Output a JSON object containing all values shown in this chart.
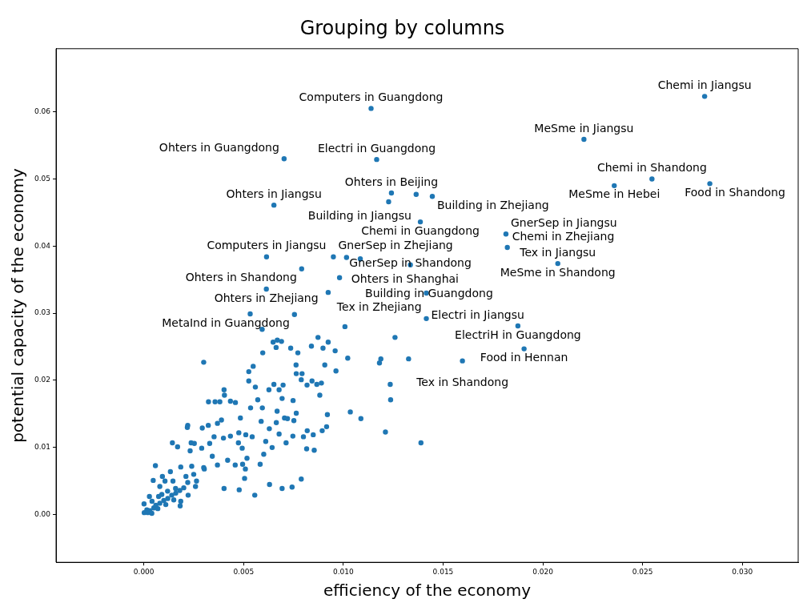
{
  "chart_data": {
    "type": "scatter",
    "title": "Grouping by columns",
    "xlabel": "efficiency of the economy",
    "ylabel": "potential capacity of the economy",
    "xlim": [
      -0.0044,
      0.0328
    ],
    "ylim": [
      -0.0071,
      0.0694
    ],
    "xticks": [
      {
        "value": 0,
        "label": "0.000"
      },
      {
        "value": 0.005,
        "label": "0.005"
      },
      {
        "value": 0.01,
        "label": "0.010"
      },
      {
        "value": 0.015,
        "label": "0.015"
      },
      {
        "value": 0.02,
        "label": "0.020"
      },
      {
        "value": 0.025,
        "label": "0.025"
      },
      {
        "value": 0.03,
        "label": "0.030"
      }
    ],
    "yticks": [
      {
        "value": 0,
        "label": "0.00"
      },
      {
        "value": 0.01,
        "label": "0.01"
      },
      {
        "value": 0.02,
        "label": "0.02"
      },
      {
        "value": 0.03,
        "label": "0.03"
      },
      {
        "value": 0.04,
        "label": "0.04"
      },
      {
        "value": 0.05,
        "label": "0.05"
      },
      {
        "value": 0.06,
        "label": "0.06"
      }
    ],
    "grid": false,
    "legend": false,
    "marker": "circle",
    "series": [
      {
        "color": "#1f77b4",
        "x": [
          0.01139,
          0.01167,
          0.00703,
          0.01241,
          0.01365,
          0.01446,
          0.00652,
          0.01386,
          0.01815,
          0.01822,
          0.02075,
          0.00615,
          0.0095,
          0.00791,
          0.01336,
          0.01416,
          0.01416,
          0.01875,
          0.00755,
          0.01906,
          0.01597,
          0.02811,
          0.02206,
          0.02547,
          0.02358,
          0.02837,
          0.00614,
          0.01085,
          0.00533,
          0.00924,
          0.00981,
          0.01227,
          0.01016,
          0.00593,
          0.01008,
          0.01259,
          0.00873,
          0.00669,
          0.00648,
          0.0069,
          0.00924,
          0.0084,
          0.00663,
          0.00736,
          0.00898,
          0.00772,
          0.00596,
          0.00959,
          0.01022,
          0.01188,
          0.01181,
          0.01327,
          0.003,
          0.00548,
          0.00763,
          0.00907,
          0.00526,
          0.00963,
          0.00764,
          0.00793,
          0.00789,
          0.00843,
          0.0089,
          0.00867,
          0.00818,
          0.00526,
          0.00559,
          0.00652,
          0.00698,
          0.00627,
          0.00678,
          0.01235,
          0.00402,
          0.00404,
          0.00571,
          0.00693,
          0.00748,
          0.00882,
          0.01237,
          0.00324,
          0.00357,
          0.00381,
          0.00434,
          0.00459,
          0.00535,
          0.00594,
          0.00668,
          0.00764,
          0.01035,
          0.01088,
          0.0092,
          0.00705,
          0.0072,
          0.00752,
          0.00484,
          0.00389,
          0.00369,
          0.00323,
          0.0022,
          0.00218,
          0.00293,
          0.00588,
          0.00629,
          0.00664,
          0.00476,
          0.00511,
          0.00543,
          0.00678,
          0.00747,
          0.008,
          0.00849,
          0.00894,
          0.00916,
          0.00819,
          0.01211,
          0.01389,
          0.00143,
          0.00169,
          0.00237,
          0.00253,
          0.0033,
          0.00399,
          0.00434,
          0.00352,
          0.00474,
          0.00493,
          0.00611,
          0.00643,
          0.00713,
          0.00816,
          0.00854,
          0.00517,
          0.00601,
          0.00583,
          0.00058,
          0.00232,
          0.0029,
          0.00343,
          0.0042,
          0.00458,
          0.00495,
          0.00369,
          0.0024,
          0.00185,
          0.00303,
          0.00509,
          0.00505,
          0.00789,
          0.0063,
          0.00693,
          0.00743,
          0.00402,
          0.00478,
          0.00556,
          0.00259,
          0.00264,
          0.00222,
          0.00182,
          0.00185,
          0.00146,
          0.00106,
          0.0008,
          0.00047,
          0.00028,
          1e-05,
          2e-05,
          0.00015,
          0.00041,
          0.00074,
          0.00119,
          0.00159,
          0.00211,
          0.00093,
          0.00133,
          0.0003,
          0.0005,
          0.0006,
          0.0008,
          0.001,
          0.0012,
          0.0014,
          0.0016,
          0.0018,
          0.002,
          0.0009,
          0.0011,
          0.0015,
          0.0007,
          0.0025,
          0.003,
          0.0022,
          0.0004,
          0.0002
        ],
        "values": [
          0.0605,
          0.0529,
          0.053,
          0.0479,
          0.0477,
          0.0474,
          0.0461,
          0.0436,
          0.0418,
          0.0398,
          0.0374,
          0.0384,
          0.0384,
          0.0366,
          0.0372,
          0.033,
          0.0292,
          0.0281,
          0.0298,
          0.0247,
          0.0229,
          0.0623,
          0.0559,
          0.05,
          0.049,
          0.0493,
          0.0336,
          0.0381,
          0.0299,
          0.0331,
          0.0353,
          0.0466,
          0.0383,
          0.0276,
          0.028,
          0.0264,
          0.0264,
          0.026,
          0.0257,
          0.0258,
          0.0257,
          0.0251,
          0.0249,
          0.0248,
          0.0248,
          0.0241,
          0.0241,
          0.0244,
          0.0233,
          0.0232,
          0.0226,
          0.0232,
          0.0227,
          0.0221,
          0.0223,
          0.0223,
          0.0213,
          0.0214,
          0.021,
          0.021,
          0.0201,
          0.0199,
          0.0196,
          0.0194,
          0.0193,
          0.0199,
          0.019,
          0.0194,
          0.0193,
          0.0186,
          0.0186,
          0.0194,
          0.0186,
          0.0178,
          0.0171,
          0.0173,
          0.017,
          0.0178,
          0.0171,
          0.0168,
          0.0168,
          0.0168,
          0.0169,
          0.0167,
          0.0159,
          0.0159,
          0.0154,
          0.0151,
          0.0153,
          0.0143,
          0.0149,
          0.0144,
          0.0143,
          0.014,
          0.0144,
          0.0141,
          0.0136,
          0.0133,
          0.0133,
          0.013,
          0.0129,
          0.0139,
          0.0128,
          0.0137,
          0.0122,
          0.0119,
          0.0116,
          0.012,
          0.0117,
          0.0116,
          0.0119,
          0.0125,
          0.0131,
          0.0125,
          0.0123,
          0.0107,
          0.0107,
          0.0101,
          0.0107,
          0.0106,
          0.0106,
          0.0114,
          0.0117,
          0.0116,
          0.0107,
          0.0099,
          0.0109,
          0.01,
          0.0107,
          0.0098,
          0.0096,
          0.0084,
          0.009,
          0.0075,
          0.0073,
          0.0095,
          0.0099,
          0.0087,
          0.0081,
          0.0074,
          0.0075,
          0.0074,
          0.0072,
          0.0071,
          0.0068,
          0.0068,
          0.0054,
          0.0053,
          0.0045,
          0.0039,
          0.0041,
          0.0039,
          0.0037,
          0.0029,
          0.0042,
          0.005,
          0.0029,
          0.0013,
          0.002,
          0.005,
          0.005,
          0.0042,
          0.0051,
          0.0027,
          0.0016,
          0.0003,
          0.0007,
          0.002,
          0.0027,
          0.0035,
          0.0039,
          0.0057,
          0.0057,
          0.0064,
          0.0006,
          0.001,
          0.0014,
          0.0017,
          0.0021,
          0.0024,
          0.0029,
          0.0032,
          0.0036,
          0.004,
          0.003,
          0.0015,
          0.0022,
          0.0009,
          0.006,
          0.007,
          0.0048,
          0.0002,
          0.0003
        ]
      }
    ],
    "annotations": [
      {
        "text": "Computers in Guangdong",
        "x": 0.01139,
        "y": 0.0605
      },
      {
        "text": "Electri in Guangdong",
        "x": 0.01167,
        "y": 0.0529
      },
      {
        "text": "Ohters in Guangdong",
        "x": 0.00703,
        "y": 0.053
      },
      {
        "text": "Ohters in Beijing",
        "x": 0.01241,
        "y": 0.0479
      },
      {
        "text": "Building in Jiangsu",
        "x": 0.01365,
        "y": 0.0477
      },
      {
        "text": "Building in Zhejiang",
        "x": 0.01446,
        "y": 0.0474
      },
      {
        "text": "Ohters in Jiangsu",
        "x": 0.00652,
        "y": 0.0461
      },
      {
        "text": "Chemi in Guangdong",
        "x": 0.01386,
        "y": 0.0436
      },
      {
        "text": "GnerSep in Jiangsu",
        "x": 0.01815,
        "y": 0.0418
      },
      {
        "text": "Chemi in Zhejiang",
        "x": 0.01822,
        "y": 0.0398
      },
      {
        "text": "Tex in Jiangsu",
        "x": 0.02075,
        "y": 0.0374
      },
      {
        "text": "MeSme in Shandong",
        "x": 0.02075,
        "y": 0.0374
      },
      {
        "text": "Computers in Jiangsu",
        "x": 0.00615,
        "y": 0.0384
      },
      {
        "text": "GnerSep in Zhejiang",
        "x": 0.0095,
        "y": 0.0384
      },
      {
        "text": "Ohters in Shanghai",
        "x": 0.01016,
        "y": 0.0383
      },
      {
        "text": "Building in Guangdong",
        "x": 0.01085,
        "y": 0.0381
      },
      {
        "text": "Ohters in Shandong",
        "x": 0.00791,
        "y": 0.0366
      },
      {
        "text": "GnerSep in Shandong",
        "x": 0.01336,
        "y": 0.0372
      },
      {
        "text": "Electri in Jiangsu",
        "x": 0.01416,
        "y": 0.033
      },
      {
        "text": "Ohters in Zhejiang",
        "x": 0.00614,
        "y": 0.0336
      },
      {
        "text": "MetaInd in Guangdong",
        "x": 0.00755,
        "y": 0.0298
      },
      {
        "text": "Tex in Zhejiang",
        "x": 0.01416,
        "y": 0.0292
      },
      {
        "text": "ElectriH in Guangdong",
        "x": 0.01875,
        "y": 0.0281
      },
      {
        "text": "Food in Hennan",
        "x": 0.01906,
        "y": 0.0247
      },
      {
        "text": "Tex in Shandong",
        "x": 0.01597,
        "y": 0.0229
      },
      {
        "text": "Chemi in Jiangsu",
        "x": 0.02811,
        "y": 0.0623
      },
      {
        "text": "MeSme in Jiangsu",
        "x": 0.02206,
        "y": 0.0559
      },
      {
        "text": "Chemi in Shandong",
        "x": 0.02547,
        "y": 0.05
      },
      {
        "text": "MeSme in Hebei",
        "x": 0.02358,
        "y": 0.049
      },
      {
        "text": "Food in Shandong",
        "x": 0.02837,
        "y": 0.0493
      }
    ]
  }
}
